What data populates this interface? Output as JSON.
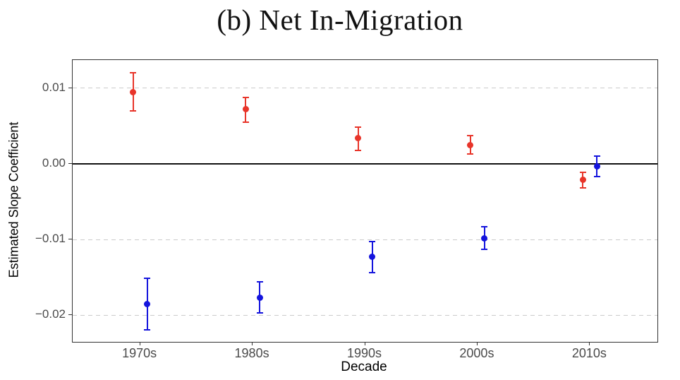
{
  "figure": {
    "background": "#ffffff"
  },
  "chart_data": {
    "type": "scatter",
    "title": "(b) Net In-Migration",
    "xlabel": "Decade",
    "ylabel": "Estimated Slope Coefficient",
    "categories": [
      "1970s",
      "1980s",
      "1990s",
      "2000s",
      "2010s"
    ],
    "xlim": [
      0.4,
      5.6
    ],
    "ylim": [
      -0.0235,
      0.0137
    ],
    "yticks": [
      {
        "value": 0.01,
        "label": "0.01",
        "gridline": "dashed"
      },
      {
        "value": 0.0,
        "label": "0.00",
        "gridline": "none"
      },
      {
        "value": -0.01,
        "label": "−0.01",
        "gridline": "dashed"
      },
      {
        "value": -0.02,
        "label": "−0.02",
        "gridline": "dashed"
      }
    ],
    "reference_line": {
      "value": 0.0,
      "style": "solid",
      "color": "#111111"
    },
    "grid": "horizontal dashed at labeled ticks except zero",
    "legend": "none",
    "colors": {
      "series_red": "#e8352a",
      "series_blue": "#1414dd"
    },
    "series": [
      {
        "name": "red-series",
        "color": "#e8352a",
        "marker": "circle",
        "points": [
          {
            "category": "1970s",
            "estimate": 0.0095,
            "ci_low": 0.007,
            "ci_high": 0.012
          },
          {
            "category": "1980s",
            "estimate": 0.0072,
            "ci_low": 0.0055,
            "ci_high": 0.0088
          },
          {
            "category": "1990s",
            "estimate": 0.0034,
            "ci_low": 0.0018,
            "ci_high": 0.0048
          },
          {
            "category": "2000s",
            "estimate": 0.0025,
            "ci_low": 0.0013,
            "ci_high": 0.0037
          },
          {
            "category": "2010s",
            "estimate": -0.0021,
            "ci_low": -0.0032,
            "ci_high": -0.0011
          }
        ]
      },
      {
        "name": "blue-series",
        "color": "#1414dd",
        "marker": "circle",
        "points": [
          {
            "category": "1970s",
            "estimate": -0.0185,
            "ci_low": -0.0219,
            "ci_high": -0.0151
          },
          {
            "category": "1980s",
            "estimate": -0.0177,
            "ci_low": -0.0197,
            "ci_high": -0.0156
          },
          {
            "category": "1990s",
            "estimate": -0.0123,
            "ci_low": -0.0144,
            "ci_high": -0.0103
          },
          {
            "category": "2000s",
            "estimate": -0.0098,
            "ci_low": -0.0113,
            "ci_high": -0.0083
          },
          {
            "category": "2010s",
            "estimate": -0.0003,
            "ci_low": -0.0017,
            "ci_high": 0.001
          }
        ]
      }
    ]
  }
}
